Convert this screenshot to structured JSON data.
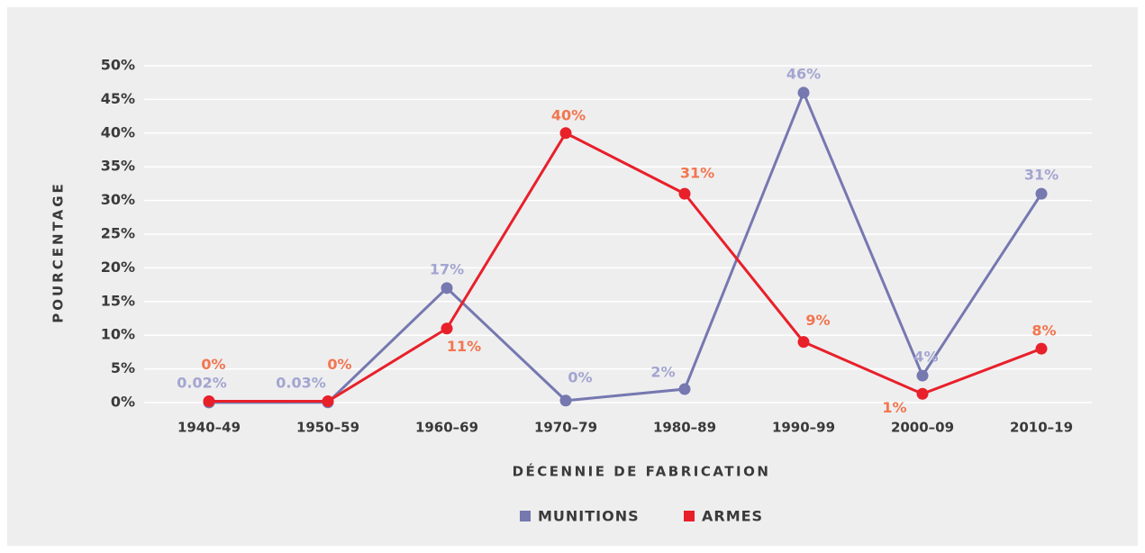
{
  "chart_data": {
    "type": "line",
    "x_label": "DÉCENNIE DE FABRICATION",
    "y_label": "POURCENTAGE",
    "categories": [
      "1940–49",
      "1950–59",
      "1960–69",
      "1970–79",
      "1980–89",
      "1990–99",
      "2000–09",
      "2010–19"
    ],
    "series": [
      {
        "name": "MUNITIONS",
        "color": "#7678b0",
        "values": [
          0.02,
          0.03,
          17,
          0.3,
          2,
          46,
          4,
          31
        ],
        "value_labels": [
          "0.02%",
          "0.03%",
          "17%",
          "0%",
          "2%",
          "46%",
          "4%",
          "31%"
        ]
      },
      {
        "name": "ARMES",
        "color": "#e8202a",
        "values": [
          0.2,
          0.2,
          11,
          40,
          31,
          9,
          1.3,
          8
        ],
        "value_labels": [
          "0%",
          "0%",
          "11%",
          "40%",
          "31%",
          "9%",
          "1%",
          "8%"
        ]
      }
    ],
    "ylim": [
      0,
      50
    ],
    "yticks": [
      {
        "value": 0,
        "label": "0%"
      },
      {
        "value": 5,
        "label": "5%"
      },
      {
        "value": 10,
        "label": "10%"
      },
      {
        "value": 15,
        "label": "15%"
      },
      {
        "value": 20,
        "label": "20%"
      },
      {
        "value": 25,
        "label": "25%"
      },
      {
        "value": 30,
        "label": "30%"
      },
      {
        "value": 35,
        "label": "35%"
      },
      {
        "value": 40,
        "label": "40%"
      },
      {
        "value": 45,
        "label": "45%"
      },
      {
        "value": 50,
        "label": "50%"
      }
    ],
    "grid": true
  }
}
